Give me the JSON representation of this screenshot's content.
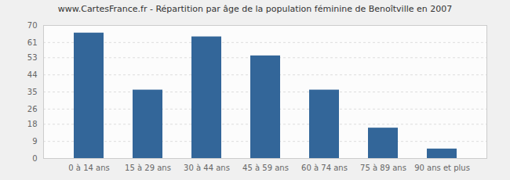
{
  "chart_data": {
    "type": "bar",
    "title": "www.CartesFrance.fr - Répartition par âge de la population féminine de Benoîtville en 2007",
    "categories": [
      "0 à 14 ans",
      "15 à 29 ans",
      "30 à 44 ans",
      "45 à 59 ans",
      "60 à 74 ans",
      "75 à 89 ans",
      "90 ans et plus"
    ],
    "values": [
      66,
      36,
      64,
      54,
      36,
      16,
      5
    ],
    "color": "#336699",
    "ylim": [
      0,
      70
    ],
    "yticks": [
      0,
      9,
      18,
      26,
      35,
      44,
      53,
      61,
      70
    ],
    "grid": true
  }
}
